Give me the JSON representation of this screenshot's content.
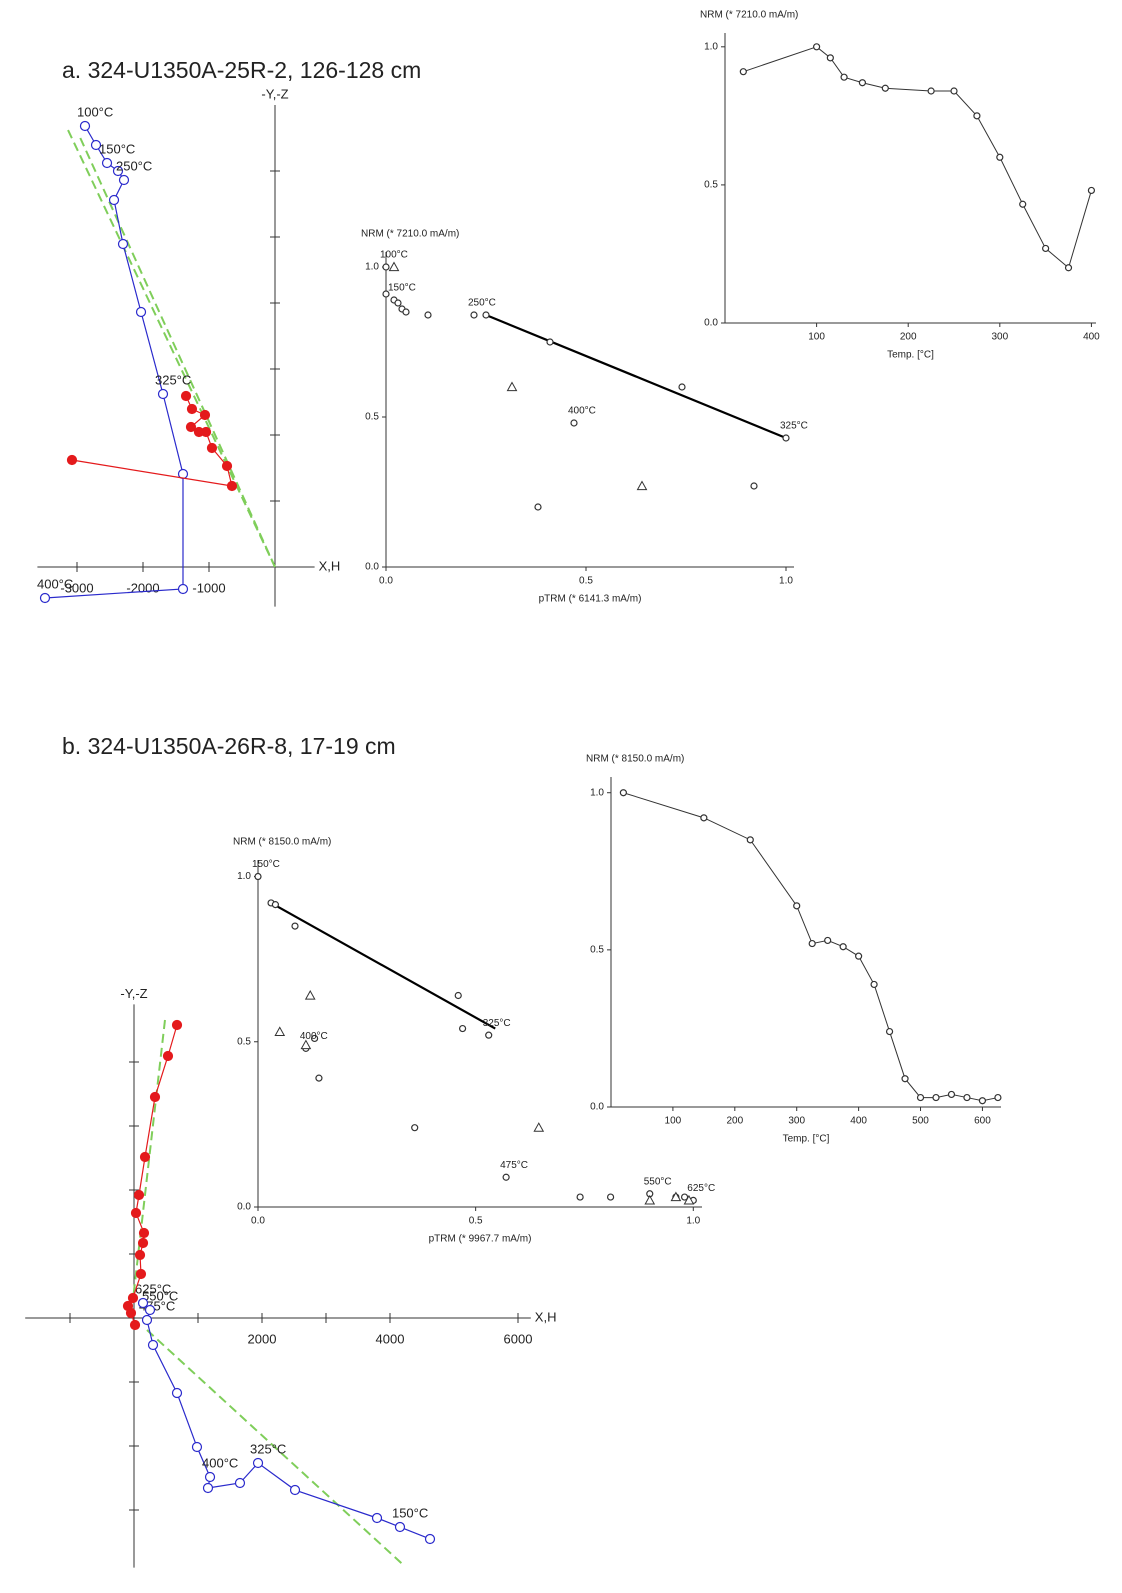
{
  "chart_data": [
    {
      "type": "zijderveld",
      "title": "a. 324-U1350A-25R-2, 126-128 cm",
      "xlabel": "X,H",
      "ylabel": "-Y,-Z",
      "xlim": [
        -3600,
        600
      ],
      "ylim": [
        -600,
        7000
      ],
      "xticks": [
        -3000,
        -2000,
        -1000
      ],
      "y_tick_marks": [
        1000,
        2000,
        3000,
        4000,
        5000,
        6000
      ],
      "series": [
        {
          "color": "#2a2acc",
          "filled": false,
          "x": [
            -2879,
            -2712,
            -2545,
            -2379,
            -2288,
            -2439,
            -2303,
            -2030,
            -1697,
            -1394,
            -1394,
            -3485
          ],
          "y": [
            6682,
            6394,
            6121,
            6000,
            5864,
            5561,
            4894,
            3864,
            2621,
            1409,
            -333,
            -470
          ],
          "labels": [
            "100°C",
            null,
            "150°C",
            null,
            "250°C",
            null,
            null,
            null,
            "325°C",
            null,
            null,
            "400°C"
          ]
        },
        {
          "color": "#e41a1c",
          "filled": true,
          "x": [
            -3076,
            -652,
            -727,
            -955,
            -1045,
            -1152,
            -1273,
            -1061,
            -1258,
            -1348
          ],
          "y": [
            1621,
            1227,
            1530,
            1803,
            2045,
            2045,
            2121,
            2303,
            2394,
            2591
          ]
        }
      ],
      "fits": [
        {
          "color": "#7fce5a",
          "x": [
            -3136,
            0
          ],
          "y": [
            6621,
            0
          ]
        },
        {
          "color": "#7fce5a",
          "x": [
            -2950,
            0
          ],
          "y": [
            6500,
            0
          ]
        }
      ]
    },
    {
      "type": "arai",
      "title": "NRM (* 7210.0 mA/m)",
      "xlabel": "pTRM (* 6141.3 mA/m)",
      "xlim": [
        0,
        1.02
      ],
      "ylim": [
        0,
        1.05
      ],
      "xticks": [
        {
          "value": 0,
          "label": "0.0"
        },
        {
          "value": 0.5,
          "label": "0.5"
        },
        {
          "value": 1,
          "label": "1.0"
        }
      ],
      "yticks": [
        {
          "value": 0,
          "label": "0.0"
        },
        {
          "value": 0.5,
          "label": "0.5"
        },
        {
          "value": 1,
          "label": "1.0"
        }
      ],
      "series": [
        {
          "marker": "circle",
          "color": "#333333",
          "x": [
            0,
            0,
            0.02,
            0.03,
            0.04,
            0.05,
            0.105,
            0.22,
            0.25,
            0.41,
            0.74,
            0.47,
            1.0,
            0.92,
            0.38
          ],
          "y": [
            1.0,
            0.91,
            0.89,
            0.88,
            0.86,
            0.85,
            0.84,
            0.84,
            0.84,
            0.75,
            0.6,
            0.48,
            0.43,
            0.27,
            0.2
          ],
          "labels": [
            "100°C",
            null,
            "150°C",
            null,
            null,
            null,
            null,
            "250°C",
            null,
            null,
            null,
            "400°C",
            "325°C",
            null,
            null
          ]
        },
        {
          "marker": "triangle",
          "color": "#333333",
          "x": [
            0.02,
            0.315,
            0.64
          ],
          "y": [
            1.0,
            0.6,
            0.27
          ]
        }
      ],
      "fit": {
        "color": "#000000",
        "x": [
          0.25,
          1.0
        ],
        "y": [
          0.84,
          0.43
        ]
      }
    },
    {
      "type": "line",
      "title": "NRM (* 7210.0 mA/m)",
      "xlabel": "Temp. [°C]",
      "xlim": [
        0,
        405
      ],
      "ylim": [
        0,
        1.05
      ],
      "xticks": [
        100,
        200,
        300,
        400
      ],
      "yticks": [
        {
          "value": 0,
          "label": "0.0"
        },
        {
          "value": 0.5,
          "label": "0.5"
        },
        {
          "value": 1,
          "label": "1.0"
        }
      ],
      "color": "#333333",
      "x": [
        20,
        100,
        115,
        130,
        150,
        175,
        225,
        250,
        275,
        300,
        325,
        350,
        375,
        400
      ],
      "values": [
        0.91,
        1.0,
        0.96,
        0.89,
        0.87,
        0.85,
        0.84,
        0.84,
        0.75,
        0.6,
        0.43,
        0.27,
        0.2,
        0.48
      ]
    },
    {
      "type": "zijderveld",
      "title": "b. 324-U1350A-26R-8, 17-19 cm",
      "xlabel": "X,H",
      "ylabel": "-Y,-Z",
      "xlim": [
        -1700,
        6200
      ],
      "ylim": [
        -3900,
        4900
      ],
      "xticks": [
        2000,
        4000,
        6000
      ],
      "x_tick_marks": [
        -1000,
        1000,
        3000
      ],
      "y_tick_marks": [
        -3000,
        -2000,
        -1000,
        1000,
        2000,
        3000,
        4000
      ],
      "series": [
        {
          "color": "#2a2acc",
          "filled": false,
          "x": [
            4625,
            4156,
            3797,
            2516,
            1938,
            1656,
            1156,
            1188,
            984,
            672,
            297,
            203,
            250,
            141
          ],
          "y": [
            -3453,
            -3266,
            -3125,
            -2688,
            -2266,
            -2578,
            -2656,
            -2484,
            -2016,
            -1172,
            -422,
            -31,
            125,
            234
          ],
          "labels": [
            null,
            "150°C",
            null,
            null,
            "325°C",
            null,
            null,
            "400°C",
            null,
            null,
            null,
            "475°C",
            "550°C",
            "625°C"
          ]
        },
        {
          "color": "#e41a1c",
          "filled": true,
          "x": [
            672,
            531,
            328,
            172,
            78,
            31,
            156,
            141,
            94,
            109,
            -16,
            -94,
            -47,
            16
          ],
          "y": [
            4578,
            4094,
            3453,
            2516,
            1922,
            1641,
            1328,
            1172,
            984,
            688,
            313,
            188,
            78,
            -109
          ]
        }
      ],
      "fits": [
        {
          "color": "#7fce5a",
          "x": [
            484,
            -16
          ],
          "y": [
            4656,
            281
          ]
        },
        {
          "color": "#7fce5a",
          "x": [
            203,
            4200
          ],
          "y": [
            -188,
            -3850
          ]
        }
      ]
    },
    {
      "type": "arai",
      "title": "NRM (* 8150.0 mA/m)",
      "xlabel": "pTRM (* 9967.7 mA/m)",
      "xlim": [
        0,
        1.02
      ],
      "ylim": [
        0,
        1.05
      ],
      "xticks": [
        {
          "value": 0,
          "label": "0.0"
        },
        {
          "value": 0.5,
          "label": "0.5"
        },
        {
          "value": 1,
          "label": "1.0"
        }
      ],
      "yticks": [
        {
          "value": 0,
          "label": "0.0"
        },
        {
          "value": 0.5,
          "label": "0.5"
        },
        {
          "value": 1,
          "label": "1.0"
        }
      ],
      "series": [
        {
          "marker": "circle",
          "color": "#333333",
          "x": [
            0,
            0.03,
            0.04,
            0.085,
            0.46,
            0.53,
            0.47,
            0.13,
            0.11,
            0.14,
            0.36,
            0.57,
            0.74,
            0.81,
            0.9,
            0.96,
            0.98,
            1.0
          ],
          "y": [
            1.0,
            0.92,
            0.915,
            0.85,
            0.64,
            0.52,
            0.54,
            0.51,
            0.48,
            0.39,
            0.24,
            0.09,
            0.03,
            0.03,
            0.04,
            0.03,
            0.03,
            0.02
          ],
          "labels": [
            "150°C",
            null,
            null,
            null,
            null,
            "325°C",
            null,
            null,
            "400°C",
            null,
            null,
            "475°C",
            null,
            null,
            "550°C",
            null,
            null,
            "625°C"
          ]
        },
        {
          "marker": "triangle",
          "color": "#333333",
          "x": [
            0.12,
            0.05,
            0.11,
            0.645,
            0.9,
            0.96,
            0.99
          ],
          "y": [
            0.64,
            0.53,
            0.49,
            0.24,
            0.02,
            0.03,
            0.02
          ]
        }
      ],
      "fit": {
        "color": "#000000",
        "x": [
          0.03,
          0.545
        ],
        "y": [
          0.92,
          0.54
        ]
      }
    },
    {
      "type": "line",
      "title": "NRM (* 8150.0 mA/m)",
      "xlabel": "Temp. [°C]",
      "xlim": [
        0,
        630
      ],
      "ylim": [
        0,
        1.05
      ],
      "xticks": [
        100,
        200,
        300,
        400,
        500,
        600
      ],
      "yticks": [
        {
          "value": 0,
          "label": "0.0"
        },
        {
          "value": 0.5,
          "label": "0.5"
        },
        {
          "value": 1,
          "label": "1.0"
        }
      ],
      "color": "#333333",
      "x": [
        20,
        150,
        225,
        300,
        325,
        350,
        375,
        400,
        425,
        450,
        475,
        500,
        525,
        550,
        575,
        600,
        625
      ],
      "values": [
        1.0,
        0.92,
        0.85,
        0.64,
        0.52,
        0.53,
        0.51,
        0.48,
        0.39,
        0.24,
        0.09,
        0.03,
        0.03,
        0.04,
        0.03,
        0.02,
        0.03
      ]
    }
  ]
}
